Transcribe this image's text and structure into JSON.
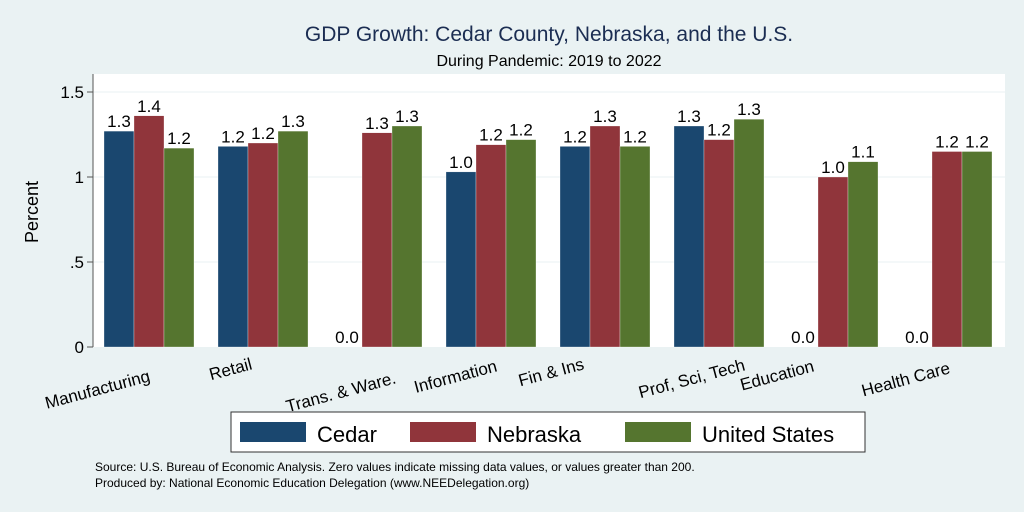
{
  "chart_data": {
    "type": "bar",
    "title": "GDP Growth: Cedar County, Nebraska, and the U.S.",
    "subtitle": "During Pandemic: 2019 to 2022",
    "xlabel": "",
    "ylabel": "Percent",
    "ylim": [
      0,
      1.6
    ],
    "yticks": [
      0,
      0.5,
      1,
      1.5
    ],
    "ytick_labels": [
      "0",
      ".5",
      "1",
      "1.5"
    ],
    "grid": true,
    "legend_position": "bottom",
    "categories": [
      "Manufacturing",
      "Retail",
      "Trans. & Ware.",
      "Information",
      "Fin & Ins",
      "Prof, Sci, Tech",
      "Education",
      "Health Care"
    ],
    "series": [
      {
        "name": "Cedar",
        "color": "#1a476f",
        "values": [
          1.27,
          1.18,
          0,
          1.03,
          1.18,
          1.3,
          0,
          0
        ],
        "labels": [
          "1.3",
          "1.2",
          "0.0",
          "1.0",
          "1.2",
          "1.3",
          "0.0",
          "0.0"
        ]
      },
      {
        "name": "Nebraska",
        "color": "#90353b",
        "values": [
          1.36,
          1.2,
          1.26,
          1.19,
          1.3,
          1.22,
          1.0,
          1.15
        ],
        "labels": [
          "1.4",
          "1.2",
          "1.3",
          "1.2",
          "1.3",
          "1.2",
          "1.0",
          "1.2"
        ]
      },
      {
        "name": "United States",
        "color": "#55752f",
        "values": [
          1.17,
          1.27,
          1.3,
          1.22,
          1.18,
          1.34,
          1.09,
          1.15
        ],
        "labels": [
          "1.2",
          "1.3",
          "1.3",
          "1.2",
          "1.2",
          "1.3",
          "1.1",
          "1.2"
        ]
      }
    ],
    "notes": [
      "Source: U.S. Bureau of Economic Analysis. Zero values indicate missing data values, or values greater than 200.",
      "Produced by: National Economic Education Delegation (www.NEEDelegation.org)"
    ]
  }
}
